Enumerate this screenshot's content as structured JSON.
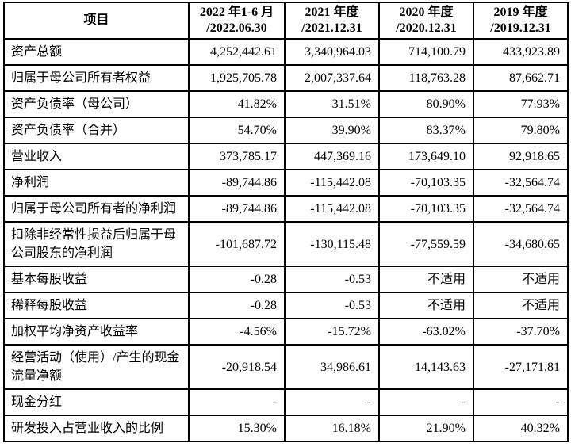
{
  "page": {
    "background_color": "#ffffff",
    "text_color": "#000000",
    "border_color": "#000000"
  },
  "table": {
    "header": [
      {
        "line1": "项目",
        "line2": ""
      },
      {
        "line1": "2022 年1-6 月",
        "line2": "/2022.06.30"
      },
      {
        "line1": "2021 年度",
        "line2": "/2021.12.31"
      },
      {
        "line1": "2020 年度",
        "line2": "/2020.12.31"
      },
      {
        "line1": "2019 年度",
        "line2": "/2019.12.31"
      }
    ],
    "rows": [
      {
        "item": "资产总额",
        "values": [
          "4,252,442.61",
          "3,340,964.03",
          "714,100.79",
          "433,923.89"
        ]
      },
      {
        "item": "归属于母公司所有者权益",
        "values": [
          "1,925,705.78",
          "2,007,337.64",
          "118,763.28",
          "87,662.71"
        ]
      },
      {
        "item": "资产负债率（母公司）",
        "values": [
          "41.82%",
          "31.51%",
          "80.90%",
          "77.93%"
        ]
      },
      {
        "item": "资产负债率（合并）",
        "values": [
          "54.70%",
          "39.90%",
          "83.37%",
          "79.80%"
        ]
      },
      {
        "item": "营业收入",
        "values": [
          "373,785.17",
          "447,369.16",
          "173,649.10",
          "92,918.65"
        ]
      },
      {
        "item": "净利润",
        "values": [
          "-89,744.86",
          "-115,442.08",
          "-70,103.35",
          "-32,564.74"
        ]
      },
      {
        "item": "归属于母公司所有者的净利润",
        "values": [
          "-89,744.86",
          "-115,442.08",
          "-70,103.35",
          "-32,564.74"
        ]
      },
      {
        "item": "扣除非经常性损益后归属于母公司股东的净利润",
        "values": [
          "-101,687.72",
          "-130,115.48",
          "-77,559.59",
          "-34,680.65"
        ]
      },
      {
        "item": "基本每股收益",
        "values": [
          "-0.28",
          "-0.53",
          "不适用",
          "不适用"
        ]
      },
      {
        "item": "稀释每股收益",
        "values": [
          "-0.28",
          "-0.53",
          "不适用",
          "不适用"
        ]
      },
      {
        "item": "加权平均净资产收益率",
        "values": [
          "-4.56%",
          "-15.72%",
          "-63.02%",
          "-37.70%"
        ]
      },
      {
        "item": "经营活动（使用）/产生的现金流量净额",
        "values": [
          "-20,918.54",
          "34,986.61",
          "14,143.63",
          "-27,171.81"
        ]
      },
      {
        "item": "现金分红",
        "values": [
          "-",
          "-",
          "-",
          "-"
        ]
      },
      {
        "item": "研发投入占营业收入的比例",
        "values": [
          "15.30%",
          "16.18%",
          "21.90%",
          "40.32%"
        ]
      }
    ]
  }
}
